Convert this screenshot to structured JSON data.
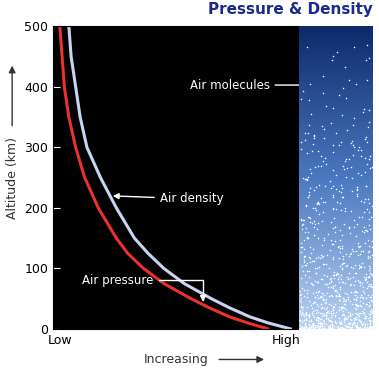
{
  "chart_data": {
    "type": "line",
    "title": "Pressure & Density",
    "x_label": "Increasing",
    "y_label": "Altitude (km)",
    "xlim": [
      -3,
      106
    ],
    "xticks": [
      {
        "value": 0,
        "label": "Low"
      },
      {
        "value": 100,
        "label": "High"
      }
    ],
    "ylim": [
      0,
      500
    ],
    "yticks": [
      0,
      100,
      200,
      300,
      400,
      500
    ],
    "grid": false,
    "y": [
      0,
      10,
      20,
      35,
      50,
      75,
      100,
      125,
      150,
      200,
      250,
      300,
      350,
      400,
      450,
      500
    ],
    "series": [
      {
        "name": "Air pressure",
        "color": "#e8322a",
        "values": [
          92,
          83,
          75,
          66,
          58,
          46,
          37,
          30,
          25,
          17,
          11,
          7,
          4,
          2,
          1,
          0
        ]
      },
      {
        "name": "Air density",
        "color": "#c8d4f0",
        "values": [
          102,
          92,
          84,
          75,
          67,
          55,
          46,
          39,
          33,
          25,
          18,
          12,
          9,
          7,
          5,
          4
        ]
      }
    ],
    "annotations": [
      {
        "text": "Air molecules"
      }
    ]
  }
}
